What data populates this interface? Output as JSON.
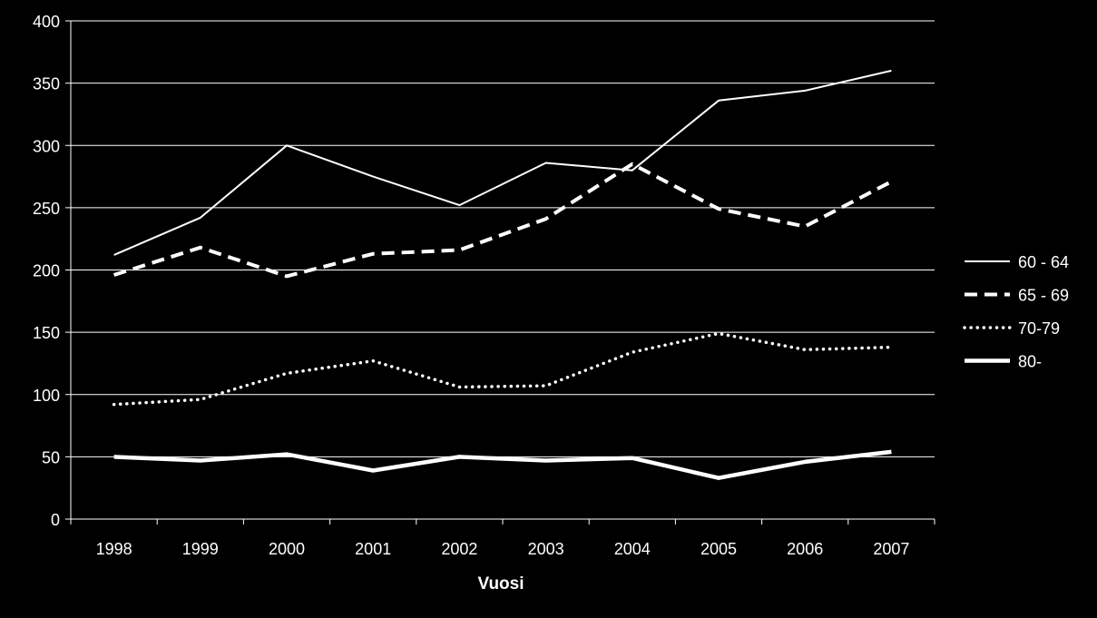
{
  "chart_data": {
    "type": "line",
    "title": "",
    "xlabel": "Vuosi",
    "ylabel": "",
    "ylim": [
      0,
      400
    ],
    "yticks": [
      0,
      50,
      100,
      150,
      200,
      250,
      300,
      350,
      400
    ],
    "grid": "horizontal",
    "legend_position": "right",
    "categories": [
      "1998",
      "1999",
      "2000",
      "2001",
      "2002",
      "2003",
      "2004",
      "2005",
      "2006",
      "2007"
    ],
    "series": [
      {
        "name": "60 - 64",
        "style": "thin-solid",
        "color": "#ffffff",
        "values": [
          212,
          242,
          300,
          275,
          252,
          286,
          280,
          336,
          344,
          360
        ]
      },
      {
        "name": "65 - 69",
        "style": "dashed",
        "color": "#ffffff",
        "values": [
          196,
          218,
          195,
          213,
          216,
          241,
          285,
          249,
          235,
          271
        ]
      },
      {
        "name": "70-79",
        "style": "dotted",
        "color": "#ffffff",
        "values": [
          92,
          96,
          117,
          127,
          106,
          107,
          134,
          149,
          136,
          138
        ]
      },
      {
        "name": "80-",
        "style": "thick-solid",
        "color": "#ffffff",
        "values": [
          50,
          47,
          52,
          39,
          50,
          47,
          49,
          33,
          46,
          54
        ]
      }
    ]
  }
}
